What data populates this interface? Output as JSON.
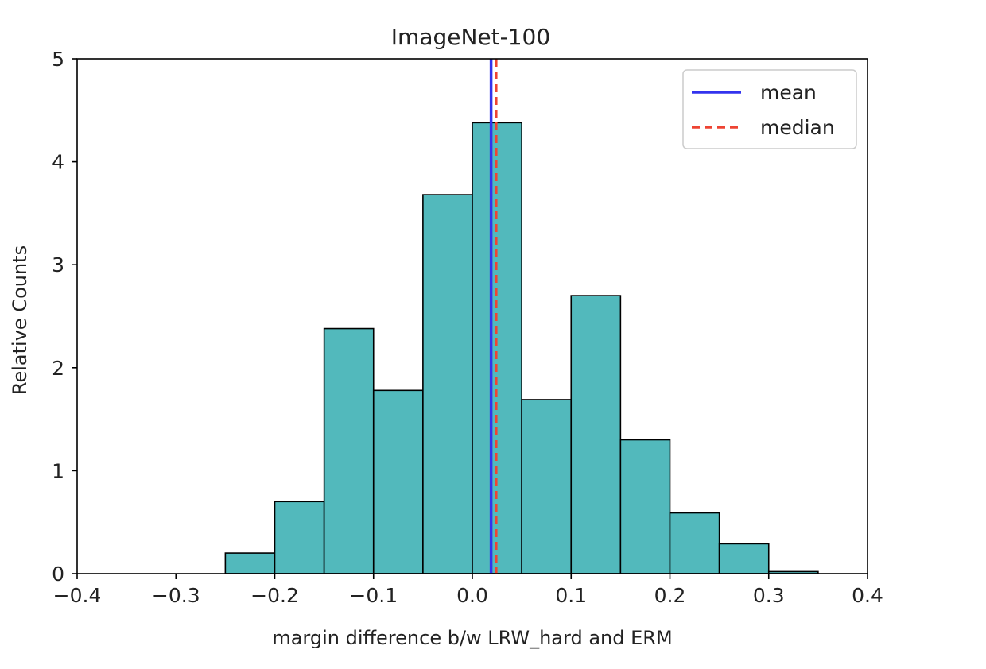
{
  "chart_data": {
    "type": "histogram",
    "title": "ImageNet-100",
    "xlabel": "margin difference b/w LRW_hard and ERM",
    "ylabel": "Relative Counts",
    "xlim": [
      -0.4,
      0.4
    ],
    "ylim": [
      0,
      5
    ],
    "xticks": [
      -0.4,
      -0.3,
      -0.2,
      -0.1,
      0.0,
      0.1,
      0.2,
      0.3,
      0.4
    ],
    "xtick_labels": [
      "−0.4",
      "−0.3",
      "−0.2",
      "−0.1",
      "0.0",
      "0.1",
      "0.2",
      "0.3",
      "0.4"
    ],
    "yticks": [
      0,
      1,
      2,
      3,
      4,
      5
    ],
    "ytick_labels": [
      "0",
      "1",
      "2",
      "3",
      "4",
      "5"
    ],
    "bins": [
      {
        "start": -0.25,
        "end": -0.2,
        "value": 0.2
      },
      {
        "start": -0.2,
        "end": -0.15,
        "value": 0.7
      },
      {
        "start": -0.15,
        "end": -0.1,
        "value": 2.38
      },
      {
        "start": -0.1,
        "end": -0.05,
        "value": 1.78
      },
      {
        "start": -0.05,
        "end": 0.0,
        "value": 3.68
      },
      {
        "start": 0.0,
        "end": 0.05,
        "value": 4.38
      },
      {
        "start": 0.05,
        "end": 0.1,
        "value": 1.69
      },
      {
        "start": 0.1,
        "end": 0.15,
        "value": 2.7
      },
      {
        "start": 0.15,
        "end": 0.2,
        "value": 1.3
      },
      {
        "start": 0.2,
        "end": 0.25,
        "value": 0.59
      },
      {
        "start": 0.25,
        "end": 0.3,
        "value": 0.29
      },
      {
        "start": 0.3,
        "end": 0.35,
        "value": 0.02
      }
    ],
    "bar_color": "#52b9bc",
    "bar_edge_color": "#000000",
    "lines": [
      {
        "name": "mean",
        "x": 0.019,
        "color": "#3333ee",
        "style": "solid"
      },
      {
        "name": "median",
        "x": 0.024,
        "color": "#ee4433",
        "style": "dashed"
      }
    ],
    "legend": {
      "position": "top-right",
      "entries": [
        "mean",
        "median"
      ]
    }
  }
}
